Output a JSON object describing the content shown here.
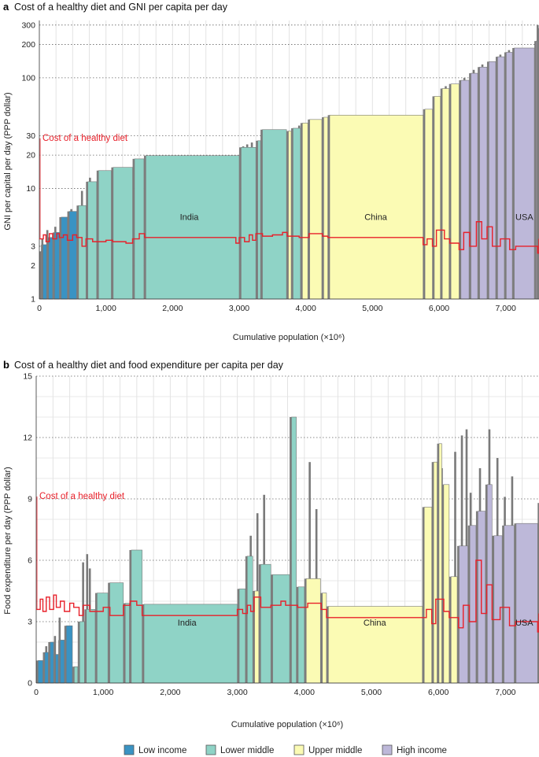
{
  "colors": {
    "low": "#3a93c3",
    "lower_middle": "#8fd3c6",
    "upper_middle": "#fbfbb4",
    "high": "#bdb8d9",
    "bar_edge": "#777777",
    "diet_line": "#e8202a",
    "grid_dotted": "#666666",
    "grid_light": "#e3e3e3"
  },
  "legend": [
    {
      "key": "low",
      "label": "Low income"
    },
    {
      "key": "lower_middle",
      "label": "Lower middle"
    },
    {
      "key": "upper_middle",
      "label": "Upper middle"
    },
    {
      "key": "high",
      "label": "High income"
    }
  ],
  "chart_data": [
    {
      "panel": "a",
      "type": "bar",
      "title": "Cost of a healthy diet and GNI per capita per day",
      "xlabel": "Cumulative population (×10⁶)",
      "ylabel": "GNI per capital per day (PPP dollar)",
      "yscale": "log",
      "ylim": [
        1,
        330
      ],
      "yticks": [
        1,
        2,
        3,
        10,
        20,
        30,
        100,
        200,
        300
      ],
      "xlim": [
        0,
        7500
      ],
      "xticks": [
        0,
        1000,
        2000,
        3000,
        4000,
        5000,
        6000,
        7000
      ],
      "xtick_labels": [
        "0",
        "1,000",
        "2,000",
        "3,000",
        "4,000",
        "5,000",
        "6,000",
        "7,000"
      ],
      "diet_label": "Cost of a healthy diet",
      "annotations": [
        {
          "text": "India",
          "x": 2250,
          "y": 5.2
        },
        {
          "text": "China",
          "x": 5050,
          "y": 5.2
        },
        {
          "text": "USA",
          "x": 7280,
          "y": 5.2
        }
      ],
      "bars": [
        {
          "x0": 0,
          "x1": 25,
          "v": 2.7,
          "g": "low"
        },
        {
          "x0": 25,
          "x1": 110,
          "v": 3.1,
          "g": "low"
        },
        {
          "x0": 110,
          "x1": 200,
          "v": 3.6,
          "g": "low"
        },
        {
          "x0": 200,
          "x1": 300,
          "v": 4.0,
          "g": "low"
        },
        {
          "x0": 300,
          "x1": 420,
          "v": 5.5,
          "g": "low"
        },
        {
          "x0": 420,
          "x1": 560,
          "v": 6.2,
          "g": "low"
        },
        {
          "x0": 560,
          "x1": 700,
          "v": 7.0,
          "g": "lower_middle"
        },
        {
          "x0": 700,
          "x1": 860,
          "v": 11.5,
          "g": "lower_middle"
        },
        {
          "x0": 860,
          "x1": 1080,
          "v": 14.5,
          "g": "lower_middle"
        },
        {
          "x0": 1080,
          "x1": 1400,
          "v": 15.5,
          "g": "lower_middle"
        },
        {
          "x0": 1400,
          "x1": 1570,
          "v": 18.5,
          "g": "lower_middle"
        },
        {
          "x0": 1570,
          "x1": 3000,
          "v": 19.8,
          "g": "lower_middle"
        },
        {
          "x0": 3000,
          "x1": 3250,
          "v": 23.5,
          "g": "lower_middle"
        },
        {
          "x0": 3250,
          "x1": 3320,
          "v": 27,
          "g": "lower_middle"
        },
        {
          "x0": 3320,
          "x1": 3710,
          "v": 34,
          "g": "lower_middle"
        },
        {
          "x0": 3710,
          "x1": 3780,
          "v": 33,
          "g": "upper_middle"
        },
        {
          "x0": 3780,
          "x1": 3920,
          "v": 35,
          "g": "lower_middle"
        },
        {
          "x0": 3920,
          "x1": 4030,
          "v": 39,
          "g": "upper_middle"
        },
        {
          "x0": 4030,
          "x1": 4240,
          "v": 42,
          "g": "upper_middle"
        },
        {
          "x0": 4240,
          "x1": 4330,
          "v": 44,
          "g": "upper_middle"
        },
        {
          "x0": 4330,
          "x1": 5760,
          "v": 46,
          "g": "upper_middle"
        },
        {
          "x0": 5760,
          "x1": 5900,
          "v": 52,
          "g": "upper_middle"
        },
        {
          "x0": 5900,
          "x1": 6020,
          "v": 68,
          "g": "upper_middle"
        },
        {
          "x0": 6020,
          "x1": 6150,
          "v": 80,
          "g": "upper_middle"
        },
        {
          "x0": 6150,
          "x1": 6300,
          "v": 88,
          "g": "upper_middle"
        },
        {
          "x0": 6300,
          "x1": 6450,
          "v": 95,
          "g": "high"
        },
        {
          "x0": 6450,
          "x1": 6580,
          "v": 110,
          "g": "high"
        },
        {
          "x0": 6580,
          "x1": 6720,
          "v": 125,
          "g": "high"
        },
        {
          "x0": 6720,
          "x1": 6850,
          "v": 140,
          "g": "high"
        },
        {
          "x0": 6850,
          "x1": 6980,
          "v": 155,
          "g": "high"
        },
        {
          "x0": 6980,
          "x1": 7100,
          "v": 170,
          "g": "high"
        },
        {
          "x0": 7100,
          "x1": 7430,
          "v": 186,
          "g": "high"
        },
        {
          "x0": 7430,
          "x1": 7470,
          "v": 215,
          "g": "high"
        },
        {
          "x0": 7470,
          "x1": 7500,
          "v": 280,
          "g": "high"
        }
      ],
      "spikes": [
        {
          "x": 45,
          "v": 3.5
        },
        {
          "x": 120,
          "v": 4.2
        },
        {
          "x": 240,
          "v": 4.5
        },
        {
          "x": 330,
          "v": 5.2
        },
        {
          "x": 480,
          "v": 6.5
        },
        {
          "x": 640,
          "v": 9.5
        },
        {
          "x": 760,
          "v": 12.5
        },
        {
          "x": 3060,
          "v": 24
        },
        {
          "x": 3120,
          "v": 25
        },
        {
          "x": 3190,
          "v": 26
        },
        {
          "x": 3900,
          "v": 37
        },
        {
          "x": 5830,
          "v": 48
        },
        {
          "x": 5950,
          "v": 62
        },
        {
          "x": 6100,
          "v": 84
        },
        {
          "x": 6380,
          "v": 100
        },
        {
          "x": 6520,
          "v": 118
        },
        {
          "x": 6650,
          "v": 132
        },
        {
          "x": 6920,
          "v": 162
        },
        {
          "x": 7050,
          "v": 178
        },
        {
          "x": 7480,
          "v": 300
        }
      ],
      "diet_cost": {
        "x": [
          0,
          60,
          100,
          150,
          200,
          260,
          300,
          360,
          420,
          500,
          560,
          640,
          700,
          800,
          1000,
          1100,
          1300,
          1400,
          1500,
          1580,
          2950,
          3000,
          3080,
          3150,
          3200,
          3250,
          3350,
          3500,
          3650,
          3720,
          3900,
          4050,
          4250,
          4330,
          5760,
          5820,
          5900,
          5960,
          6080,
          6160,
          6300,
          6370,
          6460,
          6560,
          6640,
          6720,
          6800,
          6920,
          7060,
          7150,
          7480,
          7500
        ],
        "y": [
          3.5,
          3.8,
          3.3,
          3.9,
          3.5,
          3.9,
          3.6,
          3.8,
          3.4,
          3.8,
          3.6,
          3.0,
          3.5,
          3.3,
          3.4,
          3.3,
          3.2,
          3.5,
          3.9,
          3.6,
          3.2,
          3.6,
          3.3,
          3.8,
          3.4,
          3.9,
          3.7,
          3.8,
          4.0,
          3.7,
          3.6,
          3.9,
          3.7,
          3.6,
          3.1,
          3.5,
          3.0,
          4.2,
          3.5,
          3.2,
          2.8,
          4.0,
          3.0,
          5.0,
          3.5,
          4.5,
          3.0,
          3.5,
          2.8,
          3.0,
          2.6,
          3.5
        ]
      }
    },
    {
      "panel": "b",
      "type": "bar",
      "title": "Cost of a healthy diet and food expenditure per capita per day",
      "xlabel": "Cumulative population (×10⁶)",
      "ylabel": "Food expenditure per day (PPP dollar)",
      "yscale": "linear",
      "ylim": [
        0,
        15
      ],
      "yticks": [
        0,
        3,
        6,
        9,
        12,
        15
      ],
      "xlim": [
        0,
        7500
      ],
      "xticks": [
        0,
        1000,
        2000,
        3000,
        4000,
        5000,
        6000,
        7000
      ],
      "xtick_labels": [
        "0",
        "1,000",
        "2,000",
        "3,000",
        "4,000",
        "5,000",
        "6,000",
        "7,000"
      ],
      "diet_label": "Cost of a healthy diet",
      "annotations": [
        {
          "text": "India",
          "x": 2250,
          "y": 2.8
        },
        {
          "text": "China",
          "x": 5050,
          "y": 2.8
        },
        {
          "text": "USA",
          "x": 7280,
          "y": 2.8
        }
      ],
      "bars": [
        {
          "x0": 0,
          "x1": 100,
          "v": 1.1,
          "g": "low"
        },
        {
          "x0": 100,
          "x1": 180,
          "v": 1.5,
          "g": "low"
        },
        {
          "x0": 180,
          "x1": 260,
          "v": 2.0,
          "g": "low"
        },
        {
          "x0": 260,
          "x1": 330,
          "v": 1.4,
          "g": "low"
        },
        {
          "x0": 330,
          "x1": 420,
          "v": 2.1,
          "g": "low"
        },
        {
          "x0": 420,
          "x1": 540,
          "v": 2.8,
          "g": "low"
        },
        {
          "x0": 540,
          "x1": 620,
          "v": 0.8,
          "g": "lower_middle"
        },
        {
          "x0": 620,
          "x1": 720,
          "v": 3.0,
          "g": "lower_middle"
        },
        {
          "x0": 720,
          "x1": 880,
          "v": 3.6,
          "g": "lower_middle"
        },
        {
          "x0": 880,
          "x1": 1070,
          "v": 4.4,
          "g": "lower_middle"
        },
        {
          "x0": 1070,
          "x1": 1300,
          "v": 4.9,
          "g": "lower_middle"
        },
        {
          "x0": 1300,
          "x1": 1390,
          "v": 3.9,
          "g": "lower_middle"
        },
        {
          "x0": 1390,
          "x1": 1580,
          "v": 6.5,
          "g": "lower_middle"
        },
        {
          "x0": 1580,
          "x1": 3000,
          "v": 3.85,
          "g": "lower_middle"
        },
        {
          "x0": 3000,
          "x1": 3120,
          "v": 4.6,
          "g": "lower_middle"
        },
        {
          "x0": 3120,
          "x1": 3230,
          "v": 6.2,
          "g": "lower_middle"
        },
        {
          "x0": 3230,
          "x1": 3320,
          "v": 4.5,
          "g": "upper_middle"
        },
        {
          "x0": 3320,
          "x1": 3500,
          "v": 5.8,
          "g": "lower_middle"
        },
        {
          "x0": 3500,
          "x1": 3780,
          "v": 5.3,
          "g": "lower_middle"
        },
        {
          "x0": 3780,
          "x1": 3880,
          "v": 13.0,
          "g": "lower_middle"
        },
        {
          "x0": 3880,
          "x1": 4000,
          "v": 4.7,
          "g": "lower_middle"
        },
        {
          "x0": 4000,
          "x1": 4240,
          "v": 5.1,
          "g": "upper_middle"
        },
        {
          "x0": 4240,
          "x1": 4330,
          "v": 4.4,
          "g": "upper_middle"
        },
        {
          "x0": 4330,
          "x1": 5760,
          "v": 3.75,
          "g": "upper_middle"
        },
        {
          "x0": 5760,
          "x1": 5900,
          "v": 8.6,
          "g": "upper_middle"
        },
        {
          "x0": 5900,
          "x1": 5980,
          "v": 10.8,
          "g": "upper_middle"
        },
        {
          "x0": 5980,
          "x1": 6050,
          "v": 11.7,
          "g": "upper_middle"
        },
        {
          "x0": 6050,
          "x1": 6160,
          "v": 9.7,
          "g": "upper_middle"
        },
        {
          "x0": 6160,
          "x1": 6280,
          "v": 5.2,
          "g": "upper_middle"
        },
        {
          "x0": 6280,
          "x1": 6440,
          "v": 6.7,
          "g": "high"
        },
        {
          "x0": 6440,
          "x1": 6560,
          "v": 7.7,
          "g": "high"
        },
        {
          "x0": 6560,
          "x1": 6700,
          "v": 8.4,
          "g": "high"
        },
        {
          "x0": 6700,
          "x1": 6800,
          "v": 9.7,
          "g": "high"
        },
        {
          "x0": 6800,
          "x1": 6950,
          "v": 7.2,
          "g": "high"
        },
        {
          "x0": 6950,
          "x1": 7130,
          "v": 7.7,
          "g": "high"
        },
        {
          "x0": 7130,
          "x1": 7480,
          "v": 7.8,
          "g": "high"
        },
        {
          "x0": 7480,
          "x1": 7500,
          "v": 8.8,
          "g": "high"
        }
      ],
      "spikes": [
        {
          "x": 150,
          "v": 1.8
        },
        {
          "x": 280,
          "v": 2.3
        },
        {
          "x": 350,
          "v": 3.2
        },
        {
          "x": 470,
          "v": 2.6
        },
        {
          "x": 700,
          "v": 5.9
        },
        {
          "x": 760,
          "v": 6.3
        },
        {
          "x": 800,
          "v": 5.6
        },
        {
          "x": 1150,
          "v": 4.0
        },
        {
          "x": 3200,
          "v": 7.2
        },
        {
          "x": 3300,
          "v": 8.3
        },
        {
          "x": 3400,
          "v": 9.2
        },
        {
          "x": 3850,
          "v": 12.2
        },
        {
          "x": 4080,
          "v": 10.8
        },
        {
          "x": 4180,
          "v": 8.5
        },
        {
          "x": 6050,
          "v": 10.5
        },
        {
          "x": 6250,
          "v": 11.3
        },
        {
          "x": 6350,
          "v": 12.1
        },
        {
          "x": 6420,
          "v": 12.4
        },
        {
          "x": 6480,
          "v": 9.3
        },
        {
          "x": 6620,
          "v": 10.5
        },
        {
          "x": 6760,
          "v": 12.4
        },
        {
          "x": 6880,
          "v": 11.0
        },
        {
          "x": 6990,
          "v": 9.1
        },
        {
          "x": 7100,
          "v": 10.1
        }
      ],
      "diet_cost": {
        "x": [
          0,
          60,
          100,
          150,
          200,
          260,
          300,
          360,
          420,
          500,
          560,
          640,
          700,
          800,
          1000,
          1100,
          1300,
          1400,
          1500,
          1580,
          2950,
          3000,
          3080,
          3150,
          3200,
          3250,
          3350,
          3500,
          3650,
          3720,
          3900,
          4050,
          4250,
          4330,
          5760,
          5820,
          5900,
          5960,
          6080,
          6160,
          6300,
          6370,
          6460,
          6560,
          6640,
          6720,
          6800,
          6920,
          7060,
          7150,
          7480,
          7500
        ],
        "y": [
          3.6,
          4.1,
          3.5,
          4.2,
          3.6,
          4.3,
          3.7,
          4.0,
          3.5,
          3.9,
          3.7,
          3.3,
          3.8,
          3.5,
          3.7,
          3.3,
          3.8,
          4.0,
          3.8,
          3.3,
          3.3,
          3.6,
          3.4,
          3.8,
          3.5,
          4.2,
          3.7,
          3.8,
          4.0,
          3.8,
          3.7,
          3.9,
          3.6,
          3.2,
          3.2,
          3.6,
          2.9,
          4.1,
          3.5,
          3.2,
          2.7,
          3.8,
          3.0,
          6.0,
          3.4,
          4.8,
          3.1,
          3.7,
          2.8,
          3.0,
          2.5,
          3.4
        ]
      }
    }
  ]
}
